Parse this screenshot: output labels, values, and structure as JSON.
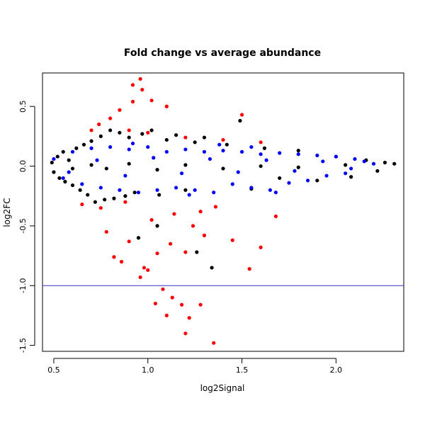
{
  "chart_data": {
    "type": "scatter",
    "title": "Fold change vs average abundance",
    "xlabel": "log2Signal",
    "ylabel": "log2FC",
    "xlim": [
      0.44,
      2.36
    ],
    "ylim": [
      -1.55,
      0.78
    ],
    "x_ticks": [
      {
        "value": 0.5,
        "label": "0.5"
      },
      {
        "value": 1.0,
        "label": "1.0"
      },
      {
        "value": 1.5,
        "label": "1.5"
      },
      {
        "value": 2.0,
        "label": "2.0"
      }
    ],
    "y_ticks": [
      {
        "value": -1.5,
        "label": "-1.5"
      },
      {
        "value": -1.0,
        "label": "-1.0"
      },
      {
        "value": -0.5,
        "label": "-0.5"
      },
      {
        "value": 0.0,
        "label": "0.0"
      },
      {
        "value": 0.5,
        "label": "0.5"
      }
    ],
    "reference_line": {
      "type": "horizontal",
      "y": -1.0,
      "color": "#3333cc"
    },
    "grid": false,
    "legend": "none",
    "series": [
      {
        "color": "#000000",
        "points": [
          [
            0.49,
            0.03
          ],
          [
            0.5,
            -0.05
          ],
          [
            0.52,
            0.08
          ],
          [
            0.53,
            -0.1
          ],
          [
            0.55,
            0.12
          ],
          [
            0.56,
            -0.13
          ],
          [
            0.58,
            0.05
          ],
          [
            0.6,
            -0.16
          ],
          [
            0.62,
            0.15
          ],
          [
            0.64,
            -0.2
          ],
          [
            0.66,
            0.18
          ],
          [
            0.68,
            -0.24
          ],
          [
            0.7,
            0.21
          ],
          [
            0.72,
            -0.3
          ],
          [
            0.75,
            0.25
          ],
          [
            0.77,
            -0.28
          ],
          [
            0.8,
            0.3
          ],
          [
            0.82,
            -0.27
          ],
          [
            0.85,
            0.28
          ],
          [
            0.88,
            -0.25
          ],
          [
            0.9,
            0.24
          ],
          [
            0.93,
            -0.22
          ],
          [
            0.97,
            0.27
          ],
          [
            1.02,
            0.3
          ],
          [
            1.06,
            -0.24
          ],
          [
            1.1,
            0.22
          ],
          [
            1.15,
            0.26
          ],
          [
            1.2,
            -0.2
          ],
          [
            1.25,
            0.2
          ],
          [
            1.3,
            0.24
          ],
          [
            1.34,
            -0.85
          ],
          [
            1.42,
            0.18
          ],
          [
            1.49,
            0.38
          ],
          [
            1.55,
            -0.19
          ],
          [
            1.62,
            0.15
          ],
          [
            1.7,
            -0.1
          ],
          [
            1.8,
            0.13
          ],
          [
            1.9,
            -0.12
          ],
          [
            2.0,
            0.08
          ],
          [
            2.08,
            -0.09
          ],
          [
            2.16,
            0.05
          ],
          [
            2.22,
            -0.04
          ],
          [
            2.26,
            0.03
          ],
          [
            2.31,
            0.02
          ],
          [
            0.95,
            -0.6
          ],
          [
            1.05,
            -0.5
          ],
          [
            1.26,
            -0.72
          ],
          [
            0.78,
            -0.02
          ],
          [
            0.9,
            0.02
          ],
          [
            1.05,
            -0.03
          ],
          [
            1.2,
            0.01
          ],
          [
            1.4,
            -0.02
          ],
          [
            1.6,
            0.0
          ],
          [
            1.8,
            -0.01
          ],
          [
            2.05,
            0.01
          ],
          [
            0.6,
            -0.02
          ],
          [
            0.7,
            0.01
          ]
        ]
      },
      {
        "color": "#0000ff",
        "points": [
          [
            0.5,
            0.06
          ],
          [
            0.55,
            -0.1
          ],
          [
            0.6,
            0.12
          ],
          [
            0.65,
            -0.15
          ],
          [
            0.7,
            0.15
          ],
          [
            0.75,
            -0.18
          ],
          [
            0.8,
            0.16
          ],
          [
            0.85,
            -0.2
          ],
          [
            0.9,
            0.14
          ],
          [
            0.95,
            -0.22
          ],
          [
            1.0,
            0.16
          ],
          [
            1.05,
            -0.2
          ],
          [
            1.1,
            0.12
          ],
          [
            1.15,
            -0.18
          ],
          [
            1.2,
            0.14
          ],
          [
            1.25,
            -0.2
          ],
          [
            1.3,
            0.12
          ],
          [
            1.35,
            -0.22
          ],
          [
            1.4,
            0.13
          ],
          [
            1.45,
            -0.15
          ],
          [
            1.5,
            0.12
          ],
          [
            1.55,
            -0.18
          ],
          [
            1.6,
            0.1
          ],
          [
            1.65,
            -0.2
          ],
          [
            1.7,
            0.11
          ],
          [
            1.75,
            -0.14
          ],
          [
            1.8,
            0.1
          ],
          [
            1.85,
            -0.12
          ],
          [
            1.9,
            0.09
          ],
          [
            1.95,
            -0.08
          ],
          [
            2.0,
            0.08
          ],
          [
            2.05,
            -0.06
          ],
          [
            2.1,
            0.06
          ],
          [
            2.15,
            0.04
          ],
          [
            2.2,
            0.02
          ],
          [
            0.58,
            -0.05
          ],
          [
            0.73,
            0.05
          ],
          [
            0.88,
            -0.08
          ],
          [
            1.03,
            0.07
          ],
          [
            1.18,
            -0.06
          ],
          [
            1.33,
            0.06
          ],
          [
            1.48,
            -0.05
          ],
          [
            1.63,
            0.05
          ],
          [
            1.78,
            -0.04
          ],
          [
            1.93,
            0.04
          ],
          [
            2.08,
            -0.02
          ],
          [
            1.55,
            0.16
          ],
          [
            1.22,
            -0.24
          ],
          [
            0.92,
            0.19
          ],
          [
            1.68,
            -0.22
          ],
          [
            1.38,
            0.18
          ]
        ]
      },
      {
        "color": "#ff0000",
        "points": [
          [
            0.96,
            0.73
          ],
          [
            0.92,
            0.68
          ],
          [
            0.97,
            0.64
          ],
          [
            0.92,
            0.54
          ],
          [
            1.02,
            0.55
          ],
          [
            0.85,
            0.47
          ],
          [
            1.1,
            0.5
          ],
          [
            1.5,
            0.43
          ],
          [
            0.8,
            0.4
          ],
          [
            0.74,
            0.35
          ],
          [
            0.9,
            0.3
          ],
          [
            1.0,
            0.28
          ],
          [
            1.2,
            0.24
          ],
          [
            1.4,
            0.22
          ],
          [
            1.6,
            0.2
          ],
          [
            0.7,
            0.3
          ],
          [
            0.88,
            -0.3
          ],
          [
            0.78,
            -0.55
          ],
          [
            0.82,
            -0.76
          ],
          [
            0.9,
            -0.63
          ],
          [
            0.98,
            -0.85
          ],
          [
            1.05,
            -0.73
          ],
          [
            1.12,
            -0.65
          ],
          [
            1.2,
            -0.72
          ],
          [
            1.3,
            -0.58
          ],
          [
            1.45,
            -0.62
          ],
          [
            1.54,
            -0.86
          ],
          [
            1.6,
            -0.68
          ],
          [
            1.68,
            -0.42
          ],
          [
            0.86,
            -0.8
          ],
          [
            0.96,
            -0.93
          ],
          [
            1.0,
            -0.87
          ],
          [
            1.04,
            -1.15
          ],
          [
            1.08,
            -1.03
          ],
          [
            1.1,
            -1.25
          ],
          [
            1.13,
            -1.1
          ],
          [
            1.18,
            -1.16
          ],
          [
            1.2,
            -1.4
          ],
          [
            1.22,
            -1.27
          ],
          [
            1.28,
            -1.16
          ],
          [
            1.35,
            -1.48
          ],
          [
            1.14,
            -0.4
          ],
          [
            1.24,
            -0.5
          ],
          [
            1.36,
            -0.34
          ],
          [
            0.75,
            -0.35
          ],
          [
            0.65,
            -0.32
          ],
          [
            1.02,
            -0.45
          ],
          [
            1.28,
            -0.38
          ]
        ]
      }
    ]
  }
}
